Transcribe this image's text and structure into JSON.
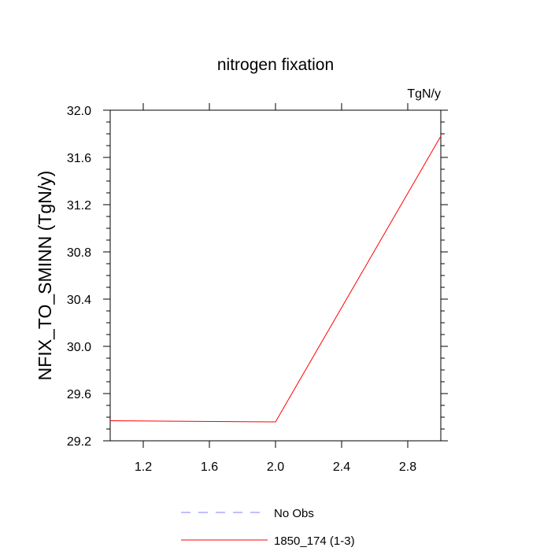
{
  "chart_data": {
    "type": "line",
    "title": "nitrogen fixation",
    "units_label": "TgN/y",
    "ylabel": "NFIX_TO_SMINN  (TgN/y)",
    "xlabel": "",
    "xlim": [
      1.0,
      3.0
    ],
    "ylim": [
      29.2,
      32.0
    ],
    "x_ticks": [
      1.2,
      1.6,
      2.0,
      2.4,
      2.8
    ],
    "x_tick_labels": [
      "1.2",
      "1.6",
      "2.0",
      "2.4",
      "2.8"
    ],
    "y_ticks": [
      29.2,
      29.6,
      30.0,
      30.4,
      30.8,
      31.2,
      31.6,
      32.0
    ],
    "y_tick_labels": [
      "29.2",
      "29.6",
      "30.0",
      "30.4",
      "30.8",
      "31.2",
      "31.6",
      "32.0"
    ],
    "grid": false,
    "legend_position": "bottom-center",
    "series": [
      {
        "name": "1850_174 (1-3)",
        "color": "#ff0000",
        "dash": "solid",
        "x": [
          1.0,
          2.0,
          3.0
        ],
        "y": [
          29.37,
          29.36,
          31.78
        ]
      }
    ],
    "legend": [
      {
        "label": "No Obs",
        "color": "#7f7fff",
        "dash": "dashed"
      },
      {
        "label": "1850_174 (1-3)",
        "color": "#ff0000",
        "dash": "solid"
      }
    ]
  }
}
